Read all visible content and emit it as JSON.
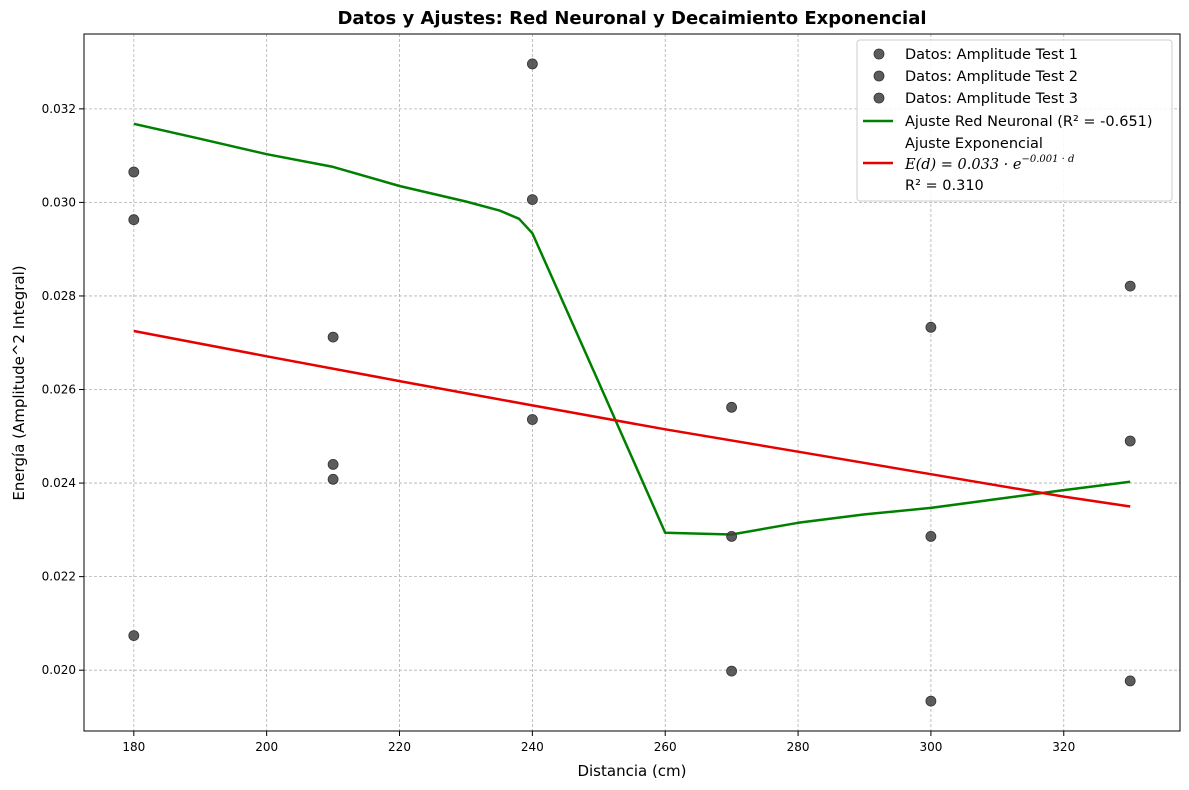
{
  "chart_data": {
    "type": "scatter",
    "title": "Datos y Ajustes: Red Neuronal y Decaimiento Exponencial",
    "xlabel": "Distancia (cm)",
    "ylabel": "Energía (Amplitude^2 Integral)",
    "xlim": [
      172.5,
      337.5
    ],
    "ylim": [
      0.0187,
      0.0336
    ],
    "xticks": [
      180,
      200,
      220,
      240,
      260,
      280,
      300,
      320
    ],
    "yticks": [
      0.02,
      0.022,
      0.024,
      0.026,
      0.028,
      0.03,
      0.032
    ],
    "xtick_labels": [
      "180",
      "200",
      "220",
      "240",
      "260",
      "280",
      "300",
      "320"
    ],
    "ytick_labels": [
      "0.020",
      "0.022",
      "0.024",
      "0.026",
      "0.028",
      "0.030",
      "0.032"
    ],
    "grid": true,
    "legend_position": "top-right",
    "scatter_series": [
      {
        "name": "Datos: Amplitude Test 1",
        "color": "#404040",
        "points": [
          [
            180,
            0.03065
          ],
          [
            210,
            0.02408
          ],
          [
            240,
            0.03296
          ],
          [
            270,
            0.02562
          ],
          [
            300,
            0.02286
          ],
          [
            330,
            0.02821
          ]
        ]
      },
      {
        "name": "Datos: Amplitude Test 2",
        "color": "#404040",
        "points": [
          [
            180,
            0.02963
          ],
          [
            210,
            0.02712
          ],
          [
            240,
            0.02536
          ],
          [
            270,
            0.01998
          ],
          [
            300,
            0.02733
          ],
          [
            330,
            0.01977
          ]
        ]
      },
      {
        "name": "Datos: Amplitude Test 3",
        "color": "#404040",
        "points": [
          [
            180,
            0.02074
          ],
          [
            210,
            0.0244
          ],
          [
            240,
            0.03006
          ],
          [
            270,
            0.02286
          ],
          [
            300,
            0.01934
          ],
          [
            330,
            0.0249
          ]
        ]
      }
    ],
    "line_series": [
      {
        "name": "Ajuste Red Neuronal (R² = -0.651)",
        "color": "#008000",
        "points": [
          [
            180,
            0.03168
          ],
          [
            190,
            0.03136
          ],
          [
            200,
            0.03103
          ],
          [
            210,
            0.03076
          ],
          [
            220,
            0.03035
          ],
          [
            230,
            0.03002
          ],
          [
            235,
            0.02983
          ],
          [
            238,
            0.02965
          ],
          [
            240,
            0.02934
          ],
          [
            250,
            0.02615
          ],
          [
            260,
            0.02294
          ],
          [
            270,
            0.0229
          ],
          [
            280,
            0.02315
          ],
          [
            290,
            0.02333
          ],
          [
            300,
            0.02347
          ],
          [
            310,
            0.02366
          ],
          [
            320,
            0.02385
          ],
          [
            330,
            0.02403
          ]
        ]
      },
      {
        "name": "Ajuste Exponencial",
        "color": "#e60000",
        "points": [
          [
            180,
            0.02725
          ],
          [
            200,
            0.02671
          ],
          [
            220,
            0.02618
          ],
          [
            240,
            0.02566
          ],
          [
            260,
            0.02515
          ],
          [
            280,
            0.02467
          ],
          [
            300,
            0.02419
          ],
          [
            320,
            0.02371
          ],
          [
            330,
            0.0235
          ]
        ]
      }
    ],
    "legend": {
      "scatter_labels": [
        "Datos: Amplitude Test 1",
        "Datos: Amplitude Test 2",
        "Datos: Amplitude Test 3"
      ],
      "nn_label": "Ajuste Red Neuronal (R² = -0.651)",
      "exp_label_line1": "Ajuste Exponencial",
      "exp_formula_base": "E(d) = 0.033 · e",
      "exp_formula_exponent": "−0.001 · d",
      "exp_label_line3": "R² = 0.310"
    }
  }
}
